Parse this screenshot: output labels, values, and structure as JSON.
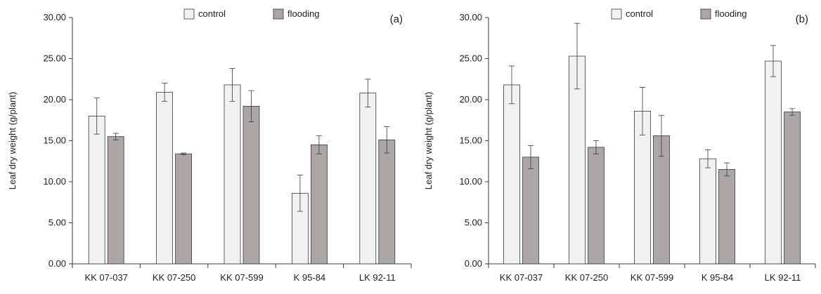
{
  "chart_data": [
    {
      "type": "bar",
      "panel_label": "(a)",
      "ylabel": "Leaf dry weight (g/plant)",
      "xlabel": "",
      "ylim": [
        0,
        30
      ],
      "yticks": [
        "0.00",
        "5.00",
        "10.00",
        "15.00",
        "20.00",
        "25.00",
        "30.00"
      ],
      "categories": [
        "KK 07-037",
        "KK 07-250",
        "KK 07-599",
        "K 95-84",
        "LK 92-11"
      ],
      "series": [
        {
          "name": "control",
          "values": [
            18.0,
            20.9,
            21.8,
            8.6,
            20.8
          ],
          "errors": [
            2.2,
            1.1,
            2.0,
            2.2,
            1.7
          ]
        },
        {
          "name": "flooding",
          "values": [
            15.5,
            13.4,
            19.2,
            14.5,
            15.1
          ],
          "errors": [
            0.4,
            0.1,
            1.9,
            1.1,
            1.6
          ]
        }
      ],
      "legend_position": "top-center",
      "grid": false
    },
    {
      "type": "bar",
      "panel_label": "(b)",
      "ylabel": "Leaf dry weight (g/plant)",
      "xlabel": "",
      "ylim": [
        0,
        30
      ],
      "yticks": [
        "0.00",
        "5.00",
        "10.00",
        "15.00",
        "20.00",
        "25.00",
        "30.00"
      ],
      "categories": [
        "KK 07-037",
        "KK 07-250",
        "KK 07-599",
        "K 95-84",
        "LK 92-11"
      ],
      "series": [
        {
          "name": "control",
          "values": [
            21.8,
            25.3,
            18.6,
            12.8,
            24.7
          ],
          "errors": [
            2.3,
            4.0,
            2.9,
            1.1,
            1.9
          ]
        },
        {
          "name": "flooding",
          "values": [
            13.0,
            14.2,
            15.6,
            11.5,
            18.5
          ],
          "errors": [
            1.4,
            0.8,
            2.5,
            0.8,
            0.4
          ]
        }
      ],
      "legend_position": "top-center",
      "grid": false
    }
  ],
  "colors": {
    "control": "#f1f1f1",
    "flooding": "#aca6a6",
    "bar_stroke": "#3a3a3a",
    "axis": "#3a3a3a"
  }
}
